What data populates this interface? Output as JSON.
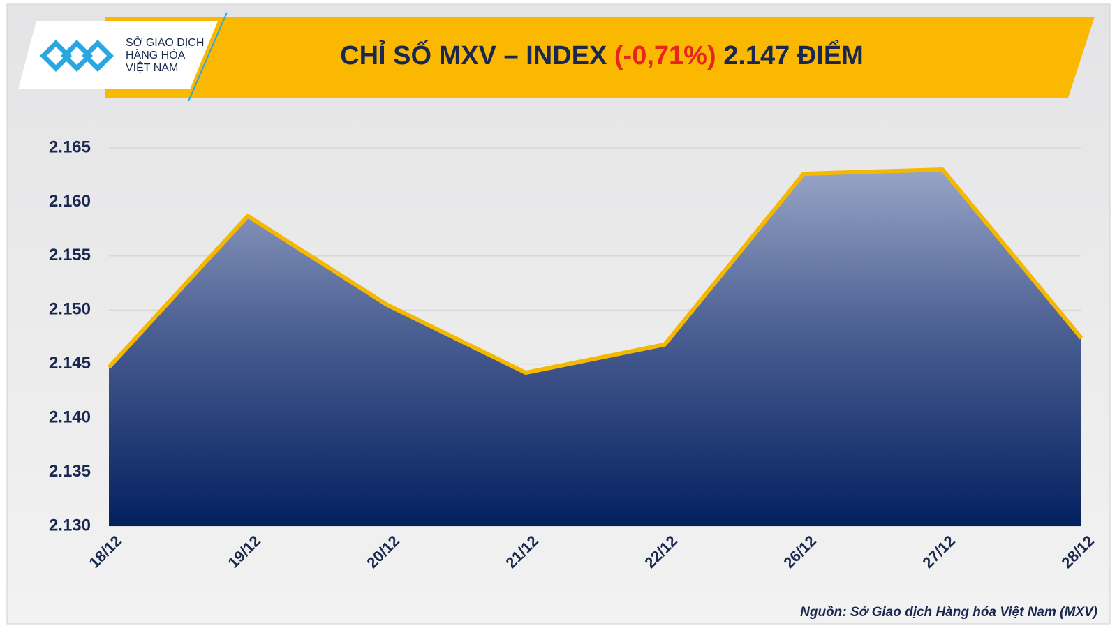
{
  "logo": {
    "lines": [
      "SỞ GIAO DỊCH",
      "HÀNG HÓA",
      "VIỆT NAM"
    ]
  },
  "chart_data": {
    "type": "area",
    "title": "CHỈ SỐ MXV – INDEX",
    "title_change": "(-0,71%)",
    "title_value": "2.147 ĐIỂM",
    "categories": [
      "18/12",
      "19/12",
      "20/12",
      "21/12",
      "22/12",
      "26/12",
      "27/12",
      "28/12"
    ],
    "values": [
      2144.7,
      2158.7,
      2150.5,
      2144.2,
      2146.8,
      2162.6,
      2163.0,
      2147.4
    ],
    "color": "#f5b800",
    "ylim": [
      2130,
      2165
    ],
    "yticks": [
      {
        "value": 2130,
        "label": "2.130"
      },
      {
        "value": 2135,
        "label": "2.135"
      },
      {
        "value": 2140,
        "label": "2.140"
      },
      {
        "value": 2145,
        "label": "2.145"
      },
      {
        "value": 2150,
        "label": "2.150"
      },
      {
        "value": 2155,
        "label": "2.155"
      },
      {
        "value": 2160,
        "label": "2.160"
      },
      {
        "value": 2165,
        "label": "2.165"
      }
    ],
    "grid": true,
    "source": "Nguồn: Sở Giao dịch Hàng hóa Việt Nam (MXV)"
  }
}
